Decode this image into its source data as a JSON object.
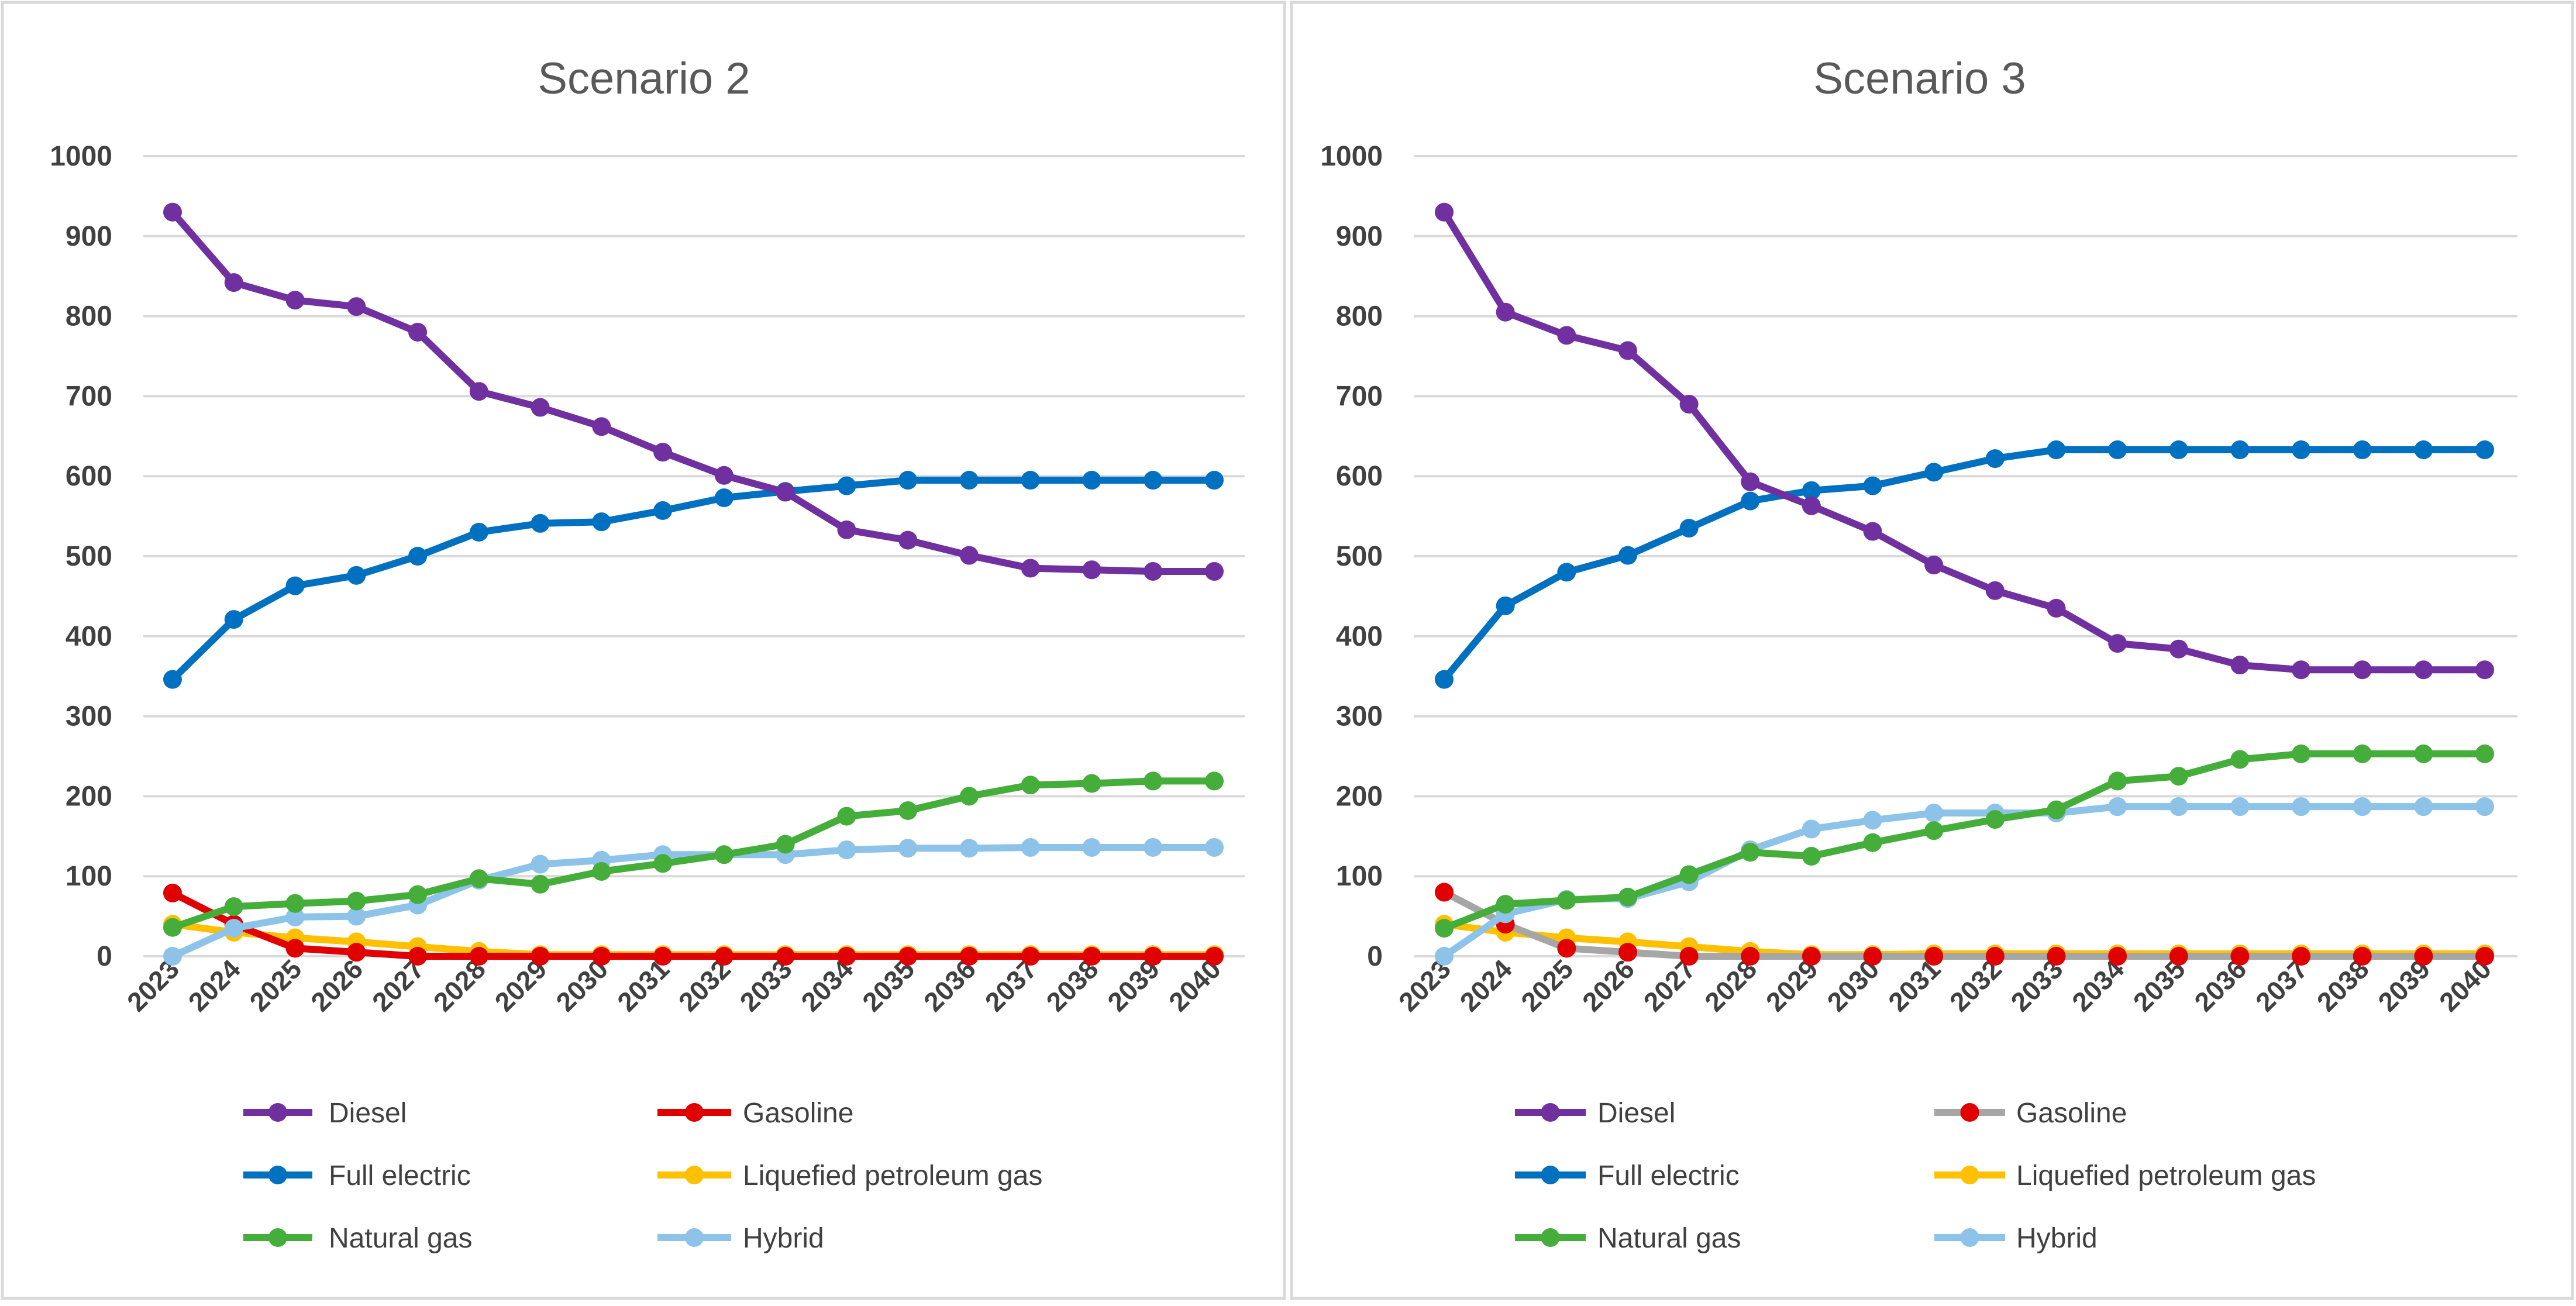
{
  "chart_data": [
    {
      "type": "line",
      "title": "Scenario 2",
      "x": [
        "2023",
        "2024",
        "2025",
        "2026",
        "2027",
        "2028",
        "2029",
        "2030",
        "2031",
        "2032",
        "2033",
        "2034",
        "2035",
        "2036",
        "2037",
        "2038",
        "2039",
        "2040"
      ],
      "ylim": [
        0,
        1000
      ],
      "yticks": [
        0,
        100,
        200,
        300,
        400,
        500,
        600,
        700,
        800,
        900,
        1000
      ],
      "grid": true,
      "legend_position": "bottom",
      "series": [
        {
          "name": "Diesel",
          "line_color": "#7030A0",
          "marker_color": "#7030A0",
          "values": [
            930,
            842,
            820,
            812,
            780,
            706,
            686,
            662,
            630,
            601,
            580,
            533,
            520,
            501,
            485,
            483,
            481,
            481
          ]
        },
        {
          "name": "Gasoline",
          "line_color": "#E00000",
          "marker_color": "#E00000",
          "values": [
            79,
            40,
            10,
            5,
            0,
            0,
            0,
            0,
            0,
            0,
            0,
            0,
            0,
            0,
            0,
            0,
            0,
            0
          ]
        },
        {
          "name": "Full electric",
          "line_color": "#0070C0",
          "marker_color": "#0070C0",
          "values": [
            346,
            421,
            463,
            476,
            500,
            530,
            541,
            543,
            557,
            573,
            581,
            588,
            595,
            595,
            595,
            595,
            595,
            595
          ]
        },
        {
          "name": "Liquefied petroleum gas",
          "line_color": "#FFC000",
          "marker_color": "#FFC000",
          "values": [
            40,
            30,
            23,
            18,
            12,
            6,
            2,
            2,
            2,
            2,
            2,
            2,
            2,
            2,
            2,
            2,
            2,
            2
          ]
        },
        {
          "name": "Natural gas",
          "line_color": "#45AD3A",
          "marker_color": "#45AD3A",
          "values": [
            36,
            62,
            66,
            69,
            77,
            97,
            90,
            106,
            116,
            127,
            140,
            175,
            182,
            200,
            214,
            216,
            219,
            219
          ]
        },
        {
          "name": "Hybrid",
          "line_color": "#8DC3E8",
          "marker_color": "#8DC3E8",
          "values": [
            0,
            35,
            49,
            50,
            64,
            95,
            115,
            120,
            127,
            127,
            127,
            133,
            135,
            135,
            136,
            136,
            136,
            136
          ]
        }
      ]
    },
    {
      "type": "line",
      "title": "Scenario 3",
      "x": [
        "2023",
        "2024",
        "2025",
        "2026",
        "2027",
        "2028",
        "2029",
        "2030",
        "2031",
        "2032",
        "2033",
        "2034",
        "2035",
        "2036",
        "2037",
        "2038",
        "2039",
        "2040"
      ],
      "ylim": [
        0,
        1000
      ],
      "yticks": [
        0,
        100,
        200,
        300,
        400,
        500,
        600,
        700,
        800,
        900,
        1000
      ],
      "grid": true,
      "legend_position": "bottom",
      "series": [
        {
          "name": "Diesel",
          "line_color": "#7030A0",
          "marker_color": "#7030A0",
          "values": [
            930,
            805,
            776,
            757,
            690,
            593,
            563,
            531,
            489,
            457,
            435,
            391,
            384,
            364,
            358,
            358,
            358,
            358
          ]
        },
        {
          "name": "Gasoline",
          "line_color": "#A6A6A6",
          "marker_color": "#E00000",
          "values": [
            80,
            40,
            10,
            5,
            0,
            0,
            0,
            0,
            0,
            0,
            0,
            0,
            0,
            0,
            0,
            0,
            0,
            0
          ]
        },
        {
          "name": "Full electric",
          "line_color": "#0070C0",
          "marker_color": "#0070C0",
          "values": [
            346,
            438,
            480,
            501,
            535,
            569,
            582,
            588,
            605,
            622,
            633,
            633,
            633,
            633,
            633,
            633,
            633,
            633
          ]
        },
        {
          "name": "Liquefied petroleum gas",
          "line_color": "#FFC000",
          "marker_color": "#FFC000",
          "values": [
            40,
            30,
            23,
            18,
            12,
            6,
            2,
            2,
            3,
            3,
            3,
            3,
            3,
            3,
            3,
            3,
            3,
            3
          ]
        },
        {
          "name": "Natural gas",
          "line_color": "#45AD3A",
          "marker_color": "#45AD3A",
          "values": [
            35,
            65,
            70,
            74,
            102,
            130,
            125,
            142,
            157,
            171,
            183,
            219,
            225,
            246,
            253,
            253,
            253,
            253
          ]
        },
        {
          "name": "Hybrid",
          "line_color": "#8DC3E8",
          "marker_color": "#8DC3E8",
          "values": [
            0,
            53,
            71,
            72,
            93,
            133,
            159,
            170,
            179,
            179,
            179,
            187,
            187,
            187,
            187,
            187,
            187,
            187
          ]
        }
      ]
    }
  ]
}
